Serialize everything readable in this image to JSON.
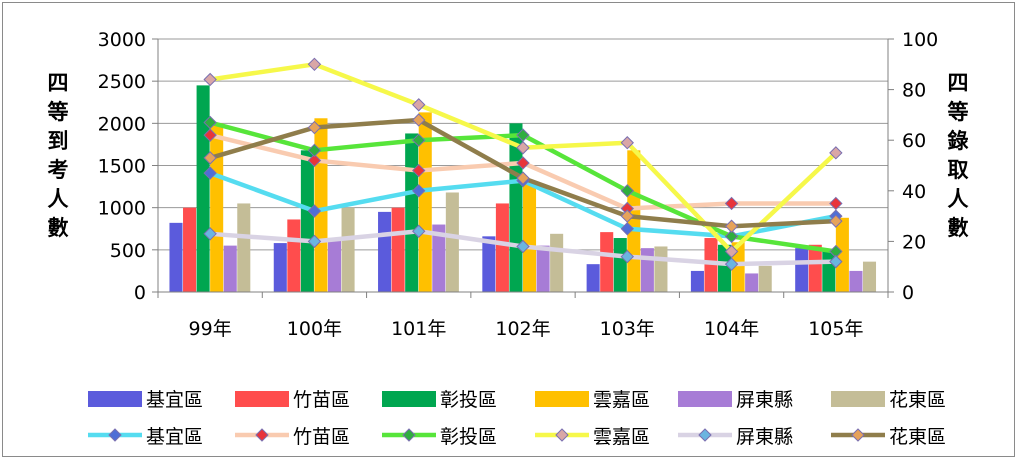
{
  "chart_data": {
    "type": "bar+line",
    "categories": [
      "99年",
      "100年",
      "101年",
      "102年",
      "103年",
      "104年",
      "105年"
    ],
    "y_left": {
      "label": "四等到考人數",
      "ylim": [
        0,
        3000
      ],
      "ticks": [
        "0",
        "500",
        "1000",
        "1500",
        "2000",
        "2500",
        "3000"
      ]
    },
    "y_right": {
      "label": "四等錄取人數",
      "ylim": [
        0,
        100
      ],
      "ticks": [
        "0",
        "20",
        "40",
        "60",
        "80",
        "100"
      ]
    },
    "grid": true,
    "legend_position": "bottom",
    "bar_series": [
      {
        "name": "基宜區",
        "color": "#5b5bdc",
        "values": [
          820,
          580,
          950,
          660,
          330,
          250,
          520
        ]
      },
      {
        "name": "竹苗區",
        "color": "#ff4d4d",
        "values": [
          1000,
          860,
          1000,
          1050,
          710,
          640,
          560
        ]
      },
      {
        "name": "彰投區",
        "color": "#00a650",
        "values": [
          2450,
          1680,
          1880,
          2000,
          640,
          560,
          500
        ]
      },
      {
        "name": "雲嘉區",
        "color": "#ffc000",
        "values": [
          2000,
          2060,
          2130,
          1300,
          1680,
          590,
          880
        ]
      },
      {
        "name": "屏東縣",
        "color": "#a77cd6",
        "values": [
          550,
          640,
          800,
          550,
          520,
          220,
          250
        ]
      },
      {
        "name": "花東區",
        "color": "#c4bd97",
        "values": [
          1050,
          1000,
          1180,
          690,
          540,
          310,
          360
        ]
      }
    ],
    "line_series": [
      {
        "name": "基宜區",
        "color": "#55dcf0",
        "marker": "#4f6ed6",
        "values": [
          47,
          32,
          40,
          44,
          25,
          22,
          30
        ]
      },
      {
        "name": "竹苗區",
        "color": "#f9cbb0",
        "marker": "#e8343a",
        "values": [
          62,
          52,
          48,
          51,
          33,
          35,
          35
        ]
      },
      {
        "name": "彰投區",
        "color": "#57e53a",
        "marker": "#2fae3f",
        "values": [
          67,
          56,
          60,
          62,
          40,
          22,
          16
        ]
      },
      {
        "name": "雲嘉區",
        "color": "#f6f84a",
        "marker": "#d9a6a6",
        "values": [
          84,
          90,
          74,
          57,
          59,
          16,
          55
        ]
      },
      {
        "name": "屏東縣",
        "color": "#d9d3e4",
        "marker": "#6bb5e0",
        "values": [
          23,
          20,
          24,
          18,
          14,
          11,
          12
        ]
      },
      {
        "name": "花東區",
        "color": "#8f7d4b",
        "marker": "#e6a25a",
        "values": [
          53,
          65,
          68,
          45,
          30,
          26,
          28
        ]
      }
    ]
  }
}
